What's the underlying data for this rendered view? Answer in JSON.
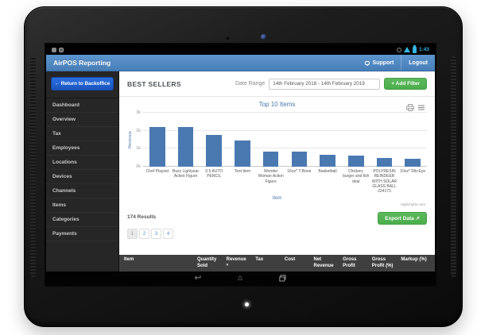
{
  "status_bar": {
    "time": "1:43"
  },
  "app_header": {
    "title": "AirPOS Reporting",
    "support_label": "Support",
    "logout_label": "Logout"
  },
  "sidebar": {
    "back_button_label": "Return to Backoffice",
    "items": [
      "Dashboard",
      "Overview",
      "Tax",
      "Employees",
      "Locations",
      "Devices",
      "Channels",
      "Items",
      "Categories",
      "Payments"
    ]
  },
  "toolbar": {
    "page_title": "BEST SELLERS",
    "date_range_label": "Date Range",
    "date_range_value": "14th February 2018 - 14th February 2019",
    "add_filter_label": "+ Add Filter"
  },
  "chart_data": {
    "type": "bar",
    "title": "Top 10 Items",
    "categories": [
      "Chef Playset",
      "Buzz Lightyear Action Figure",
      "0.5 AUTO PENCIL",
      "Test Item",
      "Wonder Woman Action Figure",
      "16oz* T-Bone",
      "Basketball",
      "Chicken, burger and fish deal",
      "POLYRESIN REINDEER WITH SOLAR GLASS BALL 224173",
      "10oz* Rib-Eye"
    ],
    "values": [
      2200,
      2200,
      1750,
      1450,
      860,
      850,
      650,
      640,
      490,
      450
    ],
    "xlabel": "Item",
    "ylabel": "Revenue",
    "ylim": [
      0,
      3000
    ],
    "yticks": [
      "0k",
      "1k",
      "2k",
      "3k"
    ],
    "legend": "none",
    "grid": "horizontal",
    "bar_color": "#4a79b2",
    "credit": "Highcharts.com"
  },
  "results": {
    "count_text": "174 Results",
    "pages": [
      "1",
      "2",
      "3",
      "4"
    ],
    "active_page": "1",
    "export_label": "Export Data"
  },
  "table": {
    "columns": [
      {
        "label": "Item"
      },
      {
        "label": "Quantity Sold"
      },
      {
        "label": "Revenue",
        "sorted": "desc"
      },
      {
        "label": "Tax"
      },
      {
        "label": "Cost"
      },
      {
        "label": "Net Revenue"
      },
      {
        "label": "Gross Profit"
      },
      {
        "label": "Gross Profit (%)"
      },
      {
        "label": "Markup (%)"
      }
    ]
  },
  "icons": {
    "back_arrow": "←",
    "export_arrow": "↗",
    "sort_desc": "▾",
    "nav_back": "↩",
    "nav_home": "⌂"
  },
  "colors": {
    "header_blue": "#477eb8",
    "backoffice_blue": "#1f63d2",
    "success_green": "#5cb85c",
    "bar_blue": "#4a79b2",
    "android_holo_blue": "#33b5e5",
    "table_header_bg": "#3f3f3f"
  }
}
